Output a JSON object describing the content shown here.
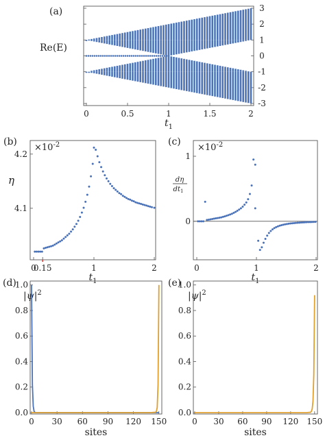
{
  "chart_data": [
    {
      "panel": "(a)",
      "type": "scatter",
      "xlabel": "t",
      "xlabel_sub": "1",
      "ylabel": "Re(E)",
      "xlim": [
        0,
        2
      ],
      "ylim": [
        -3,
        3
      ],
      "xticks": [
        "0",
        "0.5",
        "1",
        "1.5",
        "2"
      ],
      "yticks": [
        "3",
        "2",
        "1",
        "0",
        "-1",
        "-2",
        "-3"
      ],
      "grid": false,
      "legend": "none",
      "color": "#4a72b8",
      "bands": [
        {
          "y_at_t0": [
            1,
            1
          ],
          "y_at_t2": [
            1,
            3
          ],
          "description_note": "upper band spanning from 1 to 1+t1"
        },
        {
          "y_at_t0": [
            -1,
            -1
          ],
          "y_at_t2": [
            -3,
            -1
          ],
          "description_note": "lower band spanning from -1-t1 to -1"
        },
        {
          "y_at_t0": [
            0,
            0
          ],
          "closing_t": 1,
          "description_note": "edge states near 0 for t1 < 1"
        }
      ]
    },
    {
      "panel": "(b)",
      "type": "scatter",
      "xlabel": "t",
      "xlabel_sub": "1",
      "ylabel": "η",
      "multiplier": "×10",
      "multiplier_exp": "-2",
      "xlim": [
        0,
        2
      ],
      "ylim": [
        4.01,
        4.22
      ],
      "xticks": [
        "0",
        "0.15",
        "1",
        "2"
      ],
      "yticks": [
        "4.2",
        "4.1"
      ],
      "color": "#4a72b8",
      "marker_color": "#e0413a",
      "marker_x": 0.15,
      "x": [
        0.02,
        0.05,
        0.08,
        0.11,
        0.14,
        0.17,
        0.2,
        0.23,
        0.26,
        0.29,
        0.32,
        0.35,
        0.38,
        0.41,
        0.44,
        0.47,
        0.5,
        0.53,
        0.56,
        0.59,
        0.62,
        0.65,
        0.68,
        0.71,
        0.74,
        0.77,
        0.8,
        0.83,
        0.86,
        0.89,
        0.92,
        0.95,
        0.98,
        1.0,
        1.03,
        1.06,
        1.09,
        1.12,
        1.15,
        1.18,
        1.21,
        1.24,
        1.27,
        1.3,
        1.33,
        1.36,
        1.39,
        1.42,
        1.45,
        1.48,
        1.51,
        1.54,
        1.57,
        1.6,
        1.63,
        1.66,
        1.69,
        1.72,
        1.75,
        1.78,
        1.81,
        1.84,
        1.87,
        1.9,
        1.93,
        1.96,
        2.0
      ],
      "y": [
        4.02,
        4.02,
        4.02,
        4.02,
        4.02,
        4.026,
        4.027,
        4.028,
        4.029,
        4.03,
        4.031,
        4.033,
        4.035,
        4.037,
        4.039,
        4.041,
        4.044,
        4.047,
        4.05,
        4.053,
        4.057,
        4.061,
        4.066,
        4.071,
        4.077,
        4.084,
        4.092,
        4.101,
        4.112,
        4.125,
        4.14,
        4.159,
        4.182,
        4.212,
        4.208,
        4.196,
        4.185,
        4.176,
        4.168,
        4.161,
        4.155,
        4.15,
        4.145,
        4.141,
        4.137,
        4.134,
        4.131,
        4.128,
        4.126,
        4.123,
        4.121,
        4.119,
        4.117,
        4.116,
        4.114,
        4.113,
        4.111,
        4.11,
        4.109,
        4.108,
        4.107,
        4.106,
        4.105,
        4.104,
        4.103,
        4.102,
        4.101
      ]
    },
    {
      "panel": "(c)",
      "type": "scatter",
      "xlabel": "t",
      "xlabel_sub": "1",
      "ylabel_num": "dη",
      "ylabel_den": "dt",
      "ylabel_den_sub": "1",
      "multiplier": "×10",
      "multiplier_exp": "-2",
      "xlim": [
        0,
        2
      ],
      "ylim": [
        -0.55,
        1.2
      ],
      "xticks": [
        "0",
        "1",
        "2"
      ],
      "yticks": [
        "1",
        "0"
      ],
      "zero_line": true,
      "color": "#4a72b8",
      "x": [
        0.02,
        0.05,
        0.08,
        0.11,
        0.14,
        0.17,
        0.2,
        0.23,
        0.26,
        0.29,
        0.32,
        0.35,
        0.38,
        0.41,
        0.44,
        0.47,
        0.5,
        0.53,
        0.56,
        0.59,
        0.62,
        0.65,
        0.68,
        0.71,
        0.74,
        0.77,
        0.8,
        0.83,
        0.86,
        0.89,
        0.92,
        0.95,
        0.98,
        1.03,
        1.06,
        1.09,
        1.12,
        1.15,
        1.18,
        1.21,
        1.24,
        1.27,
        1.3,
        1.33,
        1.36,
        1.39,
        1.42,
        1.45,
        1.48,
        1.51,
        1.54,
        1.57,
        1.6,
        1.63,
        1.66,
        1.69,
        1.72,
        1.75,
        1.78,
        1.81,
        1.84,
        1.87,
        1.9,
        1.93,
        1.96,
        1.99
      ],
      "y": [
        0,
        0,
        0,
        0,
        0.3,
        0.02,
        0.025,
        0.03,
        0.035,
        0.04,
        0.045,
        0.05,
        0.055,
        0.06,
        0.068,
        0.076,
        0.085,
        0.095,
        0.105,
        0.116,
        0.13,
        0.145,
        0.162,
        0.18,
        0.2,
        0.225,
        0.255,
        0.29,
        0.34,
        0.42,
        0.55,
        0.95,
        0.87,
        -0.3,
        -0.44,
        -0.4,
        -0.33,
        -0.27,
        -0.22,
        -0.18,
        -0.15,
        -0.125,
        -0.105,
        -0.09,
        -0.078,
        -0.068,
        -0.06,
        -0.053,
        -0.047,
        -0.042,
        -0.038,
        -0.034,
        -0.031,
        -0.028,
        -0.025,
        -0.023,
        -0.021,
        -0.019,
        -0.017,
        -0.016,
        -0.014,
        -0.013,
        -0.012,
        -0.011,
        -0.01,
        -0.009
      ],
      "extra_point": {
        "x": 0.98,
        "y": 0.2
      }
    },
    {
      "panel": "(d)",
      "type": "line",
      "xlabel": "sites",
      "ylabel": "|ψ|",
      "ylabel_exp": "2",
      "xlim": [
        0,
        151
      ],
      "ylim": [
        0,
        1.02
      ],
      "xticks": [
        "0",
        "30",
        "60",
        "90",
        "120",
        "150"
      ],
      "yticks": [
        "1.0",
        "0.8",
        "0.6",
        "0.4",
        "0.2",
        "0.0"
      ],
      "series": [
        {
          "color": "#4a72b8",
          "x": [
            0,
            1,
            2,
            3,
            4,
            5,
            6,
            10,
            150
          ],
          "y": [
            1.0,
            0.22,
            0.05,
            0.01,
            0.002,
            0,
            0,
            0,
            0
          ]
        },
        {
          "color": "#e0a030",
          "x": [
            0,
            140,
            146,
            147,
            148,
            149,
            150
          ],
          "y": [
            0,
            0,
            0.003,
            0.01,
            0.04,
            0.22,
            1.0
          ]
        }
      ]
    },
    {
      "panel": "(e)",
      "type": "line",
      "xlabel": "sites",
      "ylabel": "|ψ|",
      "ylabel_exp": "2",
      "xlim": [
        0,
        151
      ],
      "ylim": [
        0,
        1.02
      ],
      "xticks": [
        "0",
        "30",
        "60",
        "90",
        "120",
        "150"
      ],
      "yticks": [
        "1.0",
        "0.8",
        "0.6",
        "0.4",
        "0.2",
        "0.0"
      ],
      "series": [
        {
          "color": "#e0a030",
          "x": [
            0,
            140,
            145,
            146,
            147,
            148,
            149,
            150
          ],
          "y": [
            0,
            0,
            0.003,
            0.01,
            0.03,
            0.09,
            0.3,
            0.92
          ]
        }
      ]
    }
  ]
}
